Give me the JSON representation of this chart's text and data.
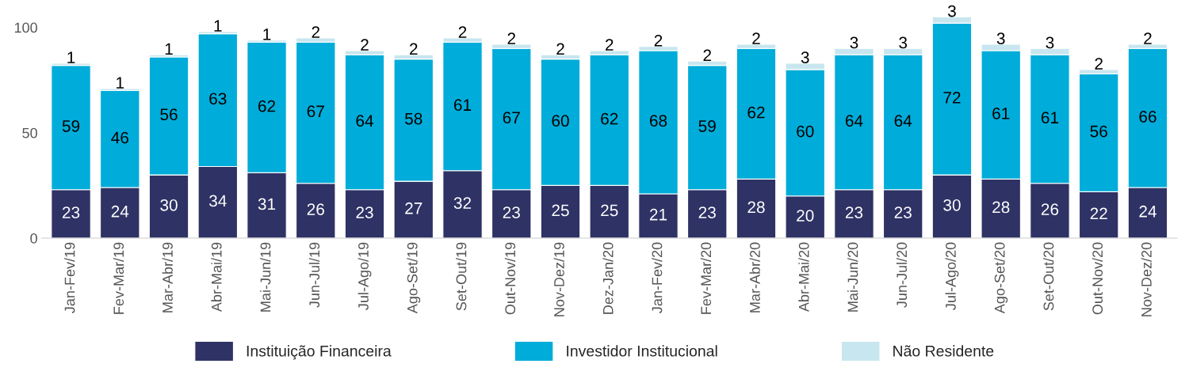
{
  "chart_data": {
    "type": "bar",
    "stacked": true,
    "data_labels": true,
    "legend": "bottom",
    "grid": false,
    "categories": [
      "Jan-Fev/19",
      "Fev-Mar/19",
      "Mar-Abr/19",
      "Abr-Mai/19",
      "Mai-Jun/19",
      "Jun-Jul/19",
      "Jul-Ago/19",
      "Ago-Set/19",
      "Set-Out/19",
      "Out-Nov/19",
      "Nov-Dez/19",
      "Dez-Jan/20",
      "Jan-Fev/20",
      "Fev-Mar/20",
      "Mar-Abr/20",
      "Abr-Mai/20",
      "Mai-Jun/20",
      "Jun-Jul/20",
      "Jul-Ago/20",
      "Ago-Set/20",
      "Set-Out/20",
      "Out-Nov/20",
      "Nov-Dez/20"
    ],
    "ylim": [
      0,
      105
    ],
    "yticks": [
      0,
      50,
      100
    ],
    "series": [
      {
        "name": "Instituição Financeira",
        "color": "#2e3264",
        "values": [
          23,
          24,
          30,
          34,
          31,
          26,
          23,
          27,
          32,
          23,
          25,
          25,
          21,
          23,
          28,
          20,
          23,
          23,
          30,
          28,
          26,
          22,
          24
        ]
      },
      {
        "name": "Investidor Institucional",
        "color": "#00acd9",
        "values": [
          59,
          46,
          56,
          63,
          62,
          67,
          64,
          58,
          61,
          67,
          60,
          62,
          68,
          59,
          62,
          60,
          64,
          64,
          72,
          61,
          61,
          56,
          66
        ]
      },
      {
        "name": "Não Residente",
        "color": "#c8e6ef",
        "values": [
          1,
          1,
          1,
          1,
          1,
          2,
          2,
          2,
          2,
          2,
          2,
          2,
          2,
          2,
          2,
          3,
          3,
          3,
          3,
          3,
          3,
          2,
          2
        ]
      }
    ]
  }
}
